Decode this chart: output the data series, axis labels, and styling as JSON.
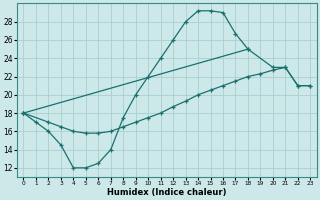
{
  "xlabel": "Humidex (Indice chaleur)",
  "xlim": [
    -0.5,
    23.5
  ],
  "ylim": [
    11,
    30
  ],
  "yticks": [
    12,
    14,
    16,
    18,
    20,
    22,
    24,
    26,
    28
  ],
  "xticks": [
    0,
    1,
    2,
    3,
    4,
    5,
    6,
    7,
    8,
    9,
    10,
    11,
    12,
    13,
    14,
    15,
    16,
    17,
    18,
    19,
    20,
    21,
    22,
    23
  ],
  "bg_color": "#cce8e8",
  "grid_color": "#aacece",
  "line_color": "#1a7070",
  "line1_x": [
    0,
    1,
    2,
    3,
    4,
    5,
    6,
    7,
    8,
    9,
    10,
    11,
    12,
    13,
    14,
    15,
    16,
    17,
    18
  ],
  "line1_y": [
    18,
    17,
    16,
    14.5,
    12,
    12,
    12.5,
    14,
    17.5,
    20,
    22,
    24,
    26,
    28,
    29.2,
    29.2,
    29,
    26.7,
    25
  ],
  "line2_x": [
    0,
    18,
    20,
    21,
    22,
    23
  ],
  "line2_y": [
    18,
    25,
    23,
    23,
    21,
    21
  ],
  "line3_x": [
    0,
    2,
    3,
    4,
    5,
    6,
    7,
    8,
    9,
    10,
    11,
    12,
    13,
    14,
    15,
    16,
    17,
    18,
    19,
    20,
    21,
    22,
    23
  ],
  "line3_y": [
    18,
    17,
    16.5,
    16,
    15.8,
    15.8,
    16.0,
    16.5,
    17,
    17.5,
    18,
    18.7,
    19.3,
    20,
    20.5,
    21,
    21.5,
    22,
    22.3,
    22.7,
    23,
    21,
    21
  ]
}
